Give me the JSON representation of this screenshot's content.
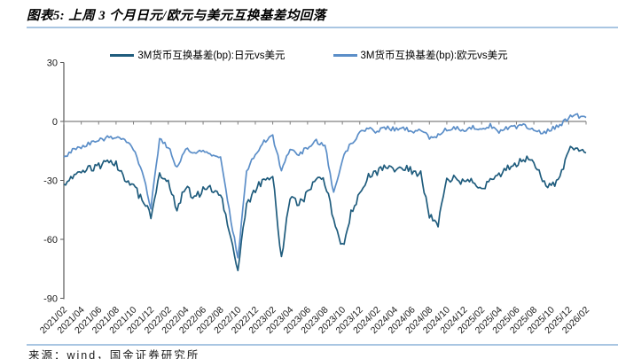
{
  "page": {
    "title": "图表5: 上周 3 个月日元/欧元与美元互换基差均回落",
    "source_note": "来源：wind，国金证券研究所"
  },
  "colors": {
    "jpy_line": "#1F5C7D",
    "eur_line": "#5B8EC8",
    "x_axis": "#808080",
    "y_axis": "#595959",
    "rule_blue": "#A9C6E2",
    "tick_text": "#1a1a1a"
  },
  "chart_data": {
    "type": "line",
    "title": "图表5: 上周 3 个月日元/欧元与美元互换基差均回落",
    "xlabel": "",
    "ylabel": "bp",
    "ylim": [
      -90,
      30
    ],
    "y_ticks": [
      30,
      0,
      -30,
      -60,
      -90
    ],
    "grid": false,
    "legend_position": "top",
    "x_axis_at_value": 0,
    "x": [
      "2021/02",
      "2021/03",
      "2021/04",
      "2021/05",
      "2021/06",
      "2021/07",
      "2021/08",
      "2021/09",
      "2021/10",
      "2021/11",
      "2021/12",
      "2022/01",
      "2022/02",
      "2022/03",
      "2022/04",
      "2022/05",
      "2022/06",
      "2022/07",
      "2022/08",
      "2022/09",
      "2022/10",
      "2022/11",
      "2022/12",
      "2023/01",
      "2023/02",
      "2023/03",
      "2023/04",
      "2023/05",
      "2023/06",
      "2023/07",
      "2023/08",
      "2023/09",
      "2023/10",
      "2023/11",
      "2023/12",
      "2024/01",
      "2024/02",
      "2024/03",
      "2024/04",
      "2024/05",
      "2024/06",
      "2024/07",
      "2024/08",
      "2024/09",
      "2024/10",
      "2024/11",
      "2024/12",
      "2025/01",
      "2025/02",
      "2025/03",
      "2025/04",
      "2025/05",
      "2025/06",
      "2025/07",
      "2025/08",
      "2025/09",
      "2025/10",
      "2025/11",
      "2025/12",
      "2026/01",
      "2026/02"
    ],
    "x_tick_labels": [
      "2021/02",
      "2021/04",
      "2021/06",
      "2021/08",
      "2021/10",
      "2021/12",
      "2022/02",
      "2022/04",
      "2022/06",
      "2022/08",
      "2022/10",
      "2022/12",
      "2023/02",
      "2023/04",
      "2023/06",
      "2023/08",
      "2023/10",
      "2023/12",
      "2024/02",
      "2024/04",
      "2024/06",
      "2024/08",
      "2024/10",
      "2024/12",
      "2025/02",
      "2025/04",
      "2025/06",
      "2025/08",
      "2025/10",
      "2025/12",
      "2026/02"
    ],
    "series": [
      {
        "name": "3M货币互换基差(bp):日元vs美元",
        "color": "#1F5C7D",
        "values": [
          -32,
          -29,
          -26,
          -24,
          -23,
          -20,
          -21,
          -30,
          -33,
          -40,
          -48,
          -27,
          -31,
          -45,
          -33,
          -39,
          -35,
          -34,
          -37,
          -55,
          -76,
          -42,
          -35,
          -29,
          -28,
          -70,
          -38,
          -42,
          -37,
          -29,
          -31,
          -50,
          -64,
          -47,
          -36,
          -28,
          -26,
          -23,
          -24,
          -23,
          -25,
          -27,
          -48,
          -52,
          -30,
          -28,
          -32,
          -30,
          -36,
          -30,
          -27,
          -24,
          -22,
          -19,
          -21,
          -30,
          -34,
          -28,
          -15,
          -13,
          -16
        ]
      },
      {
        "name": "3M货币互换基差(bp):欧元vs美元",
        "color": "#5B8EC8",
        "values": [
          -18,
          -15,
          -13,
          -11,
          -10,
          -8,
          -8,
          -9,
          -14,
          -25,
          -44,
          -9,
          -13,
          -24,
          -14,
          -16,
          -14,
          -17,
          -19,
          -45,
          -70,
          -25,
          -17,
          -10,
          -8,
          -25,
          -14,
          -17,
          -13,
          -10,
          -12,
          -37,
          -19,
          -11,
          -6,
          -4,
          -5,
          -3,
          -4,
          -3,
          -5,
          -4,
          -8,
          -7,
          -4,
          -3,
          -5,
          -3,
          -4,
          -2,
          -5,
          -3,
          -3,
          -2,
          -5,
          -6,
          -4,
          -2,
          2,
          3,
          2
        ]
      }
    ]
  }
}
